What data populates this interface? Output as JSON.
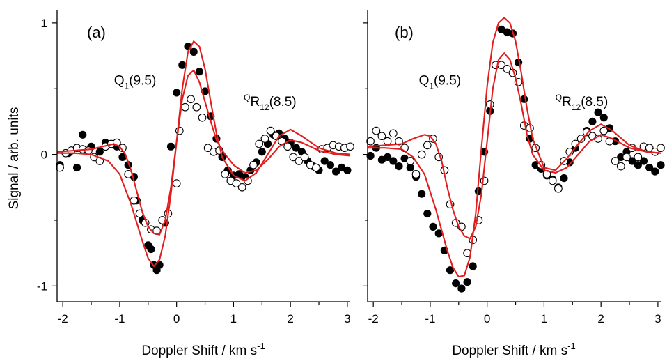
{
  "chart_data": [
    {
      "type": "scatter",
      "panel_label": "(a)",
      "xlabel": "Doppler Shift / km s",
      "xlabel_sup": "-1",
      "ylabel": "Signal / arb. units",
      "xlim": [
        -2.1,
        3.05
      ],
      "ylim": [
        -1.12,
        1.1
      ],
      "xticks": [
        -2,
        -1,
        0,
        1,
        2,
        3
      ],
      "xtick_labels": [
        "-2",
        "-1",
        "0",
        "1",
        "2",
        "3"
      ],
      "yticks": [
        -1,
        0,
        1
      ],
      "ytick_labels": [
        "-1",
        "0",
        "1"
      ],
      "grid": false,
      "annotations": [
        {
          "main": "Q",
          "sub": "1",
          "rest": "(9.5)",
          "x": -1.1,
          "y": 0.53
        },
        {
          "sup": "Q",
          "main": "R",
          "sub": "12",
          "rest": "(8.5)",
          "x": 1.18,
          "y": 0.37
        }
      ],
      "series": [
        {
          "style": "filled",
          "x": [
            -2.05,
            -1.9,
            -1.75,
            -1.65,
            -1.5,
            -1.35,
            -1.25,
            -1.15,
            -1.05,
            -0.95,
            -0.85,
            -0.75,
            -0.7,
            -0.6,
            -0.5,
            -0.45,
            -0.4,
            -0.35,
            -0.3,
            -0.2,
            -0.1,
            0.0,
            0.1,
            0.2,
            0.3,
            0.4,
            0.5,
            0.6,
            0.7,
            0.8,
            0.9,
            1.0,
            1.1,
            1.2,
            1.3,
            1.4,
            1.5,
            1.6,
            1.7,
            1.8,
            1.9,
            2.0,
            2.1,
            2.2,
            2.3,
            2.4,
            2.5,
            2.6,
            2.7,
            2.8,
            2.9,
            3.0
          ],
          "y": [
            -0.08,
            0.01,
            -0.1,
            0.15,
            0.06,
            0.02,
            0.09,
            0.08,
            0.06,
            -0.02,
            -0.08,
            -0.17,
            -0.35,
            -0.5,
            -0.69,
            -0.72,
            -0.84,
            -0.88,
            -0.84,
            -0.52,
            0.06,
            0.47,
            0.68,
            0.82,
            0.78,
            0.63,
            0.48,
            0.29,
            0.12,
            -0.02,
            -0.12,
            -0.16,
            -0.15,
            -0.17,
            -0.12,
            -0.06,
            0.02,
            0.08,
            0.15,
            0.16,
            0.12,
            0.09,
            0.05,
            0.02,
            -0.05,
            -0.09,
            -0.12,
            -0.05,
            -0.08,
            -0.13,
            -0.1,
            -0.12
          ]
        },
        {
          "style": "open",
          "x": [
            -2.05,
            -1.95,
            -1.85,
            -1.75,
            -1.65,
            -1.55,
            -1.45,
            -1.35,
            -1.25,
            -1.15,
            -1.05,
            -0.95,
            -0.85,
            -0.75,
            -0.65,
            -0.55,
            -0.45,
            -0.35,
            -0.25,
            -0.15,
            0.0,
            0.05,
            0.15,
            0.25,
            0.35,
            0.45,
            0.55,
            0.65,
            0.75,
            0.85,
            0.95,
            1.05,
            1.15,
            1.25,
            1.35,
            1.45,
            1.55,
            1.65,
            1.75,
            1.85,
            1.95,
            2.05,
            2.15,
            2.25,
            2.35,
            2.45,
            2.55,
            2.65,
            2.75,
            2.85,
            2.95,
            3.05
          ],
          "y": [
            -0.1,
            0.01,
            0.03,
            0.05,
            0.04,
            0.03,
            -0.02,
            -0.05,
            0.06,
            0.08,
            0.09,
            0.05,
            -0.15,
            -0.35,
            -0.45,
            -0.52,
            -0.57,
            -0.58,
            -0.5,
            -0.45,
            -0.22,
            0.18,
            0.36,
            0.42,
            0.36,
            0.28,
            0.05,
            0.02,
            0.03,
            -0.15,
            -0.2,
            -0.22,
            -0.25,
            -0.2,
            -0.08,
            0.08,
            0.12,
            0.18,
            0.14,
            0.1,
            0.06,
            -0.02,
            -0.05,
            -0.02,
            -0.08,
            -0.1,
            0.04,
            0.05,
            0.07,
            0.06,
            0.05,
            0.06
          ]
        },
        {
          "style": "line",
          "x": [
            -2.1,
            -1.8,
            -1.5,
            -1.2,
            -1.0,
            -0.8,
            -0.6,
            -0.5,
            -0.4,
            -0.3,
            -0.2,
            -0.1,
            0.0,
            0.1,
            0.2,
            0.3,
            0.4,
            0.5,
            0.6,
            0.7,
            0.8,
            1.0,
            1.2,
            1.4,
            1.6,
            1.8,
            2.0,
            2.2,
            2.5,
            2.8,
            3.05
          ],
          "y": [
            0.01,
            0.01,
            0.0,
            -0.05,
            -0.15,
            -0.38,
            -0.66,
            -0.79,
            -0.85,
            -0.8,
            -0.62,
            -0.3,
            0.1,
            0.5,
            0.78,
            0.86,
            0.82,
            0.65,
            0.4,
            0.16,
            -0.02,
            -0.16,
            -0.2,
            -0.14,
            0.0,
            0.14,
            0.19,
            0.14,
            0.05,
            0.01,
            0.0
          ]
        },
        {
          "style": "line",
          "x": [
            -2.1,
            -1.8,
            -1.5,
            -1.3,
            -1.1,
            -1.0,
            -0.9,
            -0.8,
            -0.7,
            -0.6,
            -0.5,
            -0.4,
            -0.3,
            -0.2,
            -0.1,
            0.0,
            0.1,
            0.2,
            0.3,
            0.4,
            0.5,
            0.6,
            0.7,
            0.8,
            1.0,
            1.2,
            1.4,
            1.6,
            1.8,
            2.0,
            2.2,
            2.5,
            2.8,
            3.05
          ],
          "y": [
            0.02,
            0.03,
            0.04,
            0.06,
            0.08,
            0.06,
            0.0,
            -0.12,
            -0.28,
            -0.44,
            -0.55,
            -0.6,
            -0.61,
            -0.5,
            -0.25,
            0.1,
            0.42,
            0.6,
            0.64,
            0.55,
            0.4,
            0.25,
            0.11,
            0.03,
            -0.08,
            -0.14,
            -0.12,
            -0.04,
            0.06,
            0.11,
            0.09,
            0.03,
            0.0,
            -0.01
          ]
        }
      ]
    },
    {
      "type": "scatter",
      "panel_label": "(b)",
      "xlabel": "Doppler Shift / km s",
      "xlabel_sup": "-1",
      "xlim": [
        -2.1,
        3.05
      ],
      "ylim": [
        -1.12,
        1.1
      ],
      "xticks": [
        -2,
        -1,
        0,
        1,
        2,
        3
      ],
      "xtick_labels": [
        "-2",
        "-1",
        "0",
        "1",
        "2",
        "3"
      ],
      "yticks": [
        -1,
        0,
        1
      ],
      "grid": false,
      "annotations": [
        {
          "main": "Q",
          "sub": "1",
          "rest": "(9.5)",
          "x": -1.2,
          "y": 0.53
        },
        {
          "sup": "Q",
          "main": "R",
          "sub": "12",
          "rest": "(8.5)",
          "x": 1.2,
          "y": 0.37
        }
      ],
      "series": [
        {
          "style": "filled",
          "x": [
            -2.05,
            -1.95,
            -1.85,
            -1.75,
            -1.65,
            -1.55,
            -1.45,
            -1.35,
            -1.25,
            -1.15,
            -1.05,
            -0.95,
            -0.85,
            -0.75,
            -0.65,
            -0.55,
            -0.45,
            -0.35,
            -0.25,
            -0.15,
            -0.05,
            0.05,
            0.15,
            0.25,
            0.35,
            0.45,
            0.55,
            0.65,
            0.75,
            0.85,
            0.95,
            1.05,
            1.15,
            1.25,
            1.35,
            1.45,
            1.55,
            1.65,
            1.75,
            1.85,
            1.95,
            2.05,
            2.15,
            2.25,
            2.35,
            2.45,
            2.55,
            2.65,
            2.75,
            2.85,
            2.95,
            3.05
          ],
          "y": [
            -0.01,
            0.05,
            -0.04,
            -0.02,
            -0.05,
            -0.09,
            -0.03,
            -0.1,
            -0.17,
            -0.3,
            -0.45,
            -0.55,
            -0.6,
            -0.73,
            -0.88,
            -0.98,
            -1.02,
            -0.97,
            -0.85,
            -0.28,
            0.02,
            0.33,
            0.68,
            0.95,
            0.93,
            0.92,
            0.7,
            0.42,
            0.12,
            -0.08,
            -0.11,
            -0.16,
            -0.19,
            -0.25,
            -0.18,
            -0.06,
            0.05,
            0.12,
            0.18,
            0.25,
            0.32,
            0.28,
            0.2,
            0.1,
            -0.02,
            0.02,
            -0.05,
            -0.08,
            -0.05,
            -0.1,
            -0.13,
            -0.08
          ]
        },
        {
          "style": "open",
          "x": [
            -2.05,
            -1.95,
            -1.85,
            -1.75,
            -1.65,
            -1.55,
            -1.45,
            -1.35,
            -1.25,
            -1.15,
            -1.05,
            -0.95,
            -0.85,
            -0.75,
            -0.65,
            -0.55,
            -0.45,
            -0.35,
            -0.25,
            -0.15,
            -0.05,
            0.05,
            0.15,
            0.25,
            0.35,
            0.45,
            0.55,
            0.65,
            0.75,
            0.85,
            0.95,
            1.05,
            1.15,
            1.25,
            1.35,
            1.45,
            1.55,
            1.65,
            1.75,
            1.85,
            1.95,
            2.05,
            2.15,
            2.25,
            2.35,
            2.45,
            2.55,
            2.65,
            2.75,
            2.85,
            2.95,
            3.05
          ],
          "y": [
            0.1,
            0.18,
            0.14,
            0.1,
            0.16,
            0.1,
            0.05,
            -0.05,
            -0.15,
            0.0,
            0.07,
            0.12,
            -0.02,
            -0.12,
            -0.38,
            -0.52,
            -0.55,
            -0.75,
            -0.65,
            -0.5,
            -0.2,
            0.38,
            0.68,
            0.68,
            0.65,
            0.62,
            0.55,
            0.22,
            0.2,
            0.05,
            -0.08,
            -0.15,
            -0.2,
            -0.26,
            -0.05,
            0.02,
            0.08,
            0.12,
            0.17,
            0.14,
            0.12,
            0.18,
            0.1,
            -0.05,
            -0.09,
            -0.02,
            0.05,
            -0.02,
            0.06,
            0.05,
            0.02,
            0.05
          ]
        },
        {
          "style": "line",
          "x": [
            -2.1,
            -1.8,
            -1.5,
            -1.3,
            -1.1,
            -0.9,
            -0.7,
            -0.6,
            -0.5,
            -0.4,
            -0.3,
            -0.2,
            -0.1,
            0.0,
            0.1,
            0.2,
            0.3,
            0.4,
            0.5,
            0.6,
            0.7,
            0.8,
            1.0,
            1.2,
            1.4,
            1.6,
            1.8,
            2.0,
            2.2,
            2.5,
            2.8,
            3.05
          ],
          "y": [
            0.05,
            0.05,
            0.04,
            -0.02,
            -0.15,
            -0.42,
            -0.73,
            -0.86,
            -0.93,
            -0.92,
            -0.78,
            -0.45,
            0.05,
            0.52,
            0.85,
            1.0,
            1.04,
            1.0,
            0.86,
            0.62,
            0.35,
            0.12,
            -0.1,
            -0.12,
            -0.03,
            0.08,
            0.18,
            0.23,
            0.18,
            0.07,
            0.02,
            0.01
          ]
        },
        {
          "style": "line",
          "x": [
            -2.1,
            -1.8,
            -1.5,
            -1.3,
            -1.1,
            -1.0,
            -0.9,
            -0.8,
            -0.7,
            -0.6,
            -0.5,
            -0.4,
            -0.3,
            -0.2,
            -0.1,
            0.0,
            0.1,
            0.2,
            0.3,
            0.4,
            0.5,
            0.6,
            0.7,
            0.8,
            1.0,
            1.2,
            1.4,
            1.6,
            1.8,
            2.0,
            2.2,
            2.5,
            2.8,
            3.05
          ],
          "y": [
            0.06,
            0.07,
            0.08,
            0.12,
            0.15,
            0.14,
            0.08,
            -0.05,
            -0.25,
            -0.42,
            -0.55,
            -0.62,
            -0.64,
            -0.55,
            -0.3,
            0.1,
            0.5,
            0.72,
            0.77,
            0.72,
            0.58,
            0.38,
            0.15,
            0.0,
            -0.12,
            -0.14,
            -0.1,
            0.0,
            0.1,
            0.15,
            0.12,
            0.05,
            0.02,
            0.01
          ]
        }
      ]
    }
  ]
}
